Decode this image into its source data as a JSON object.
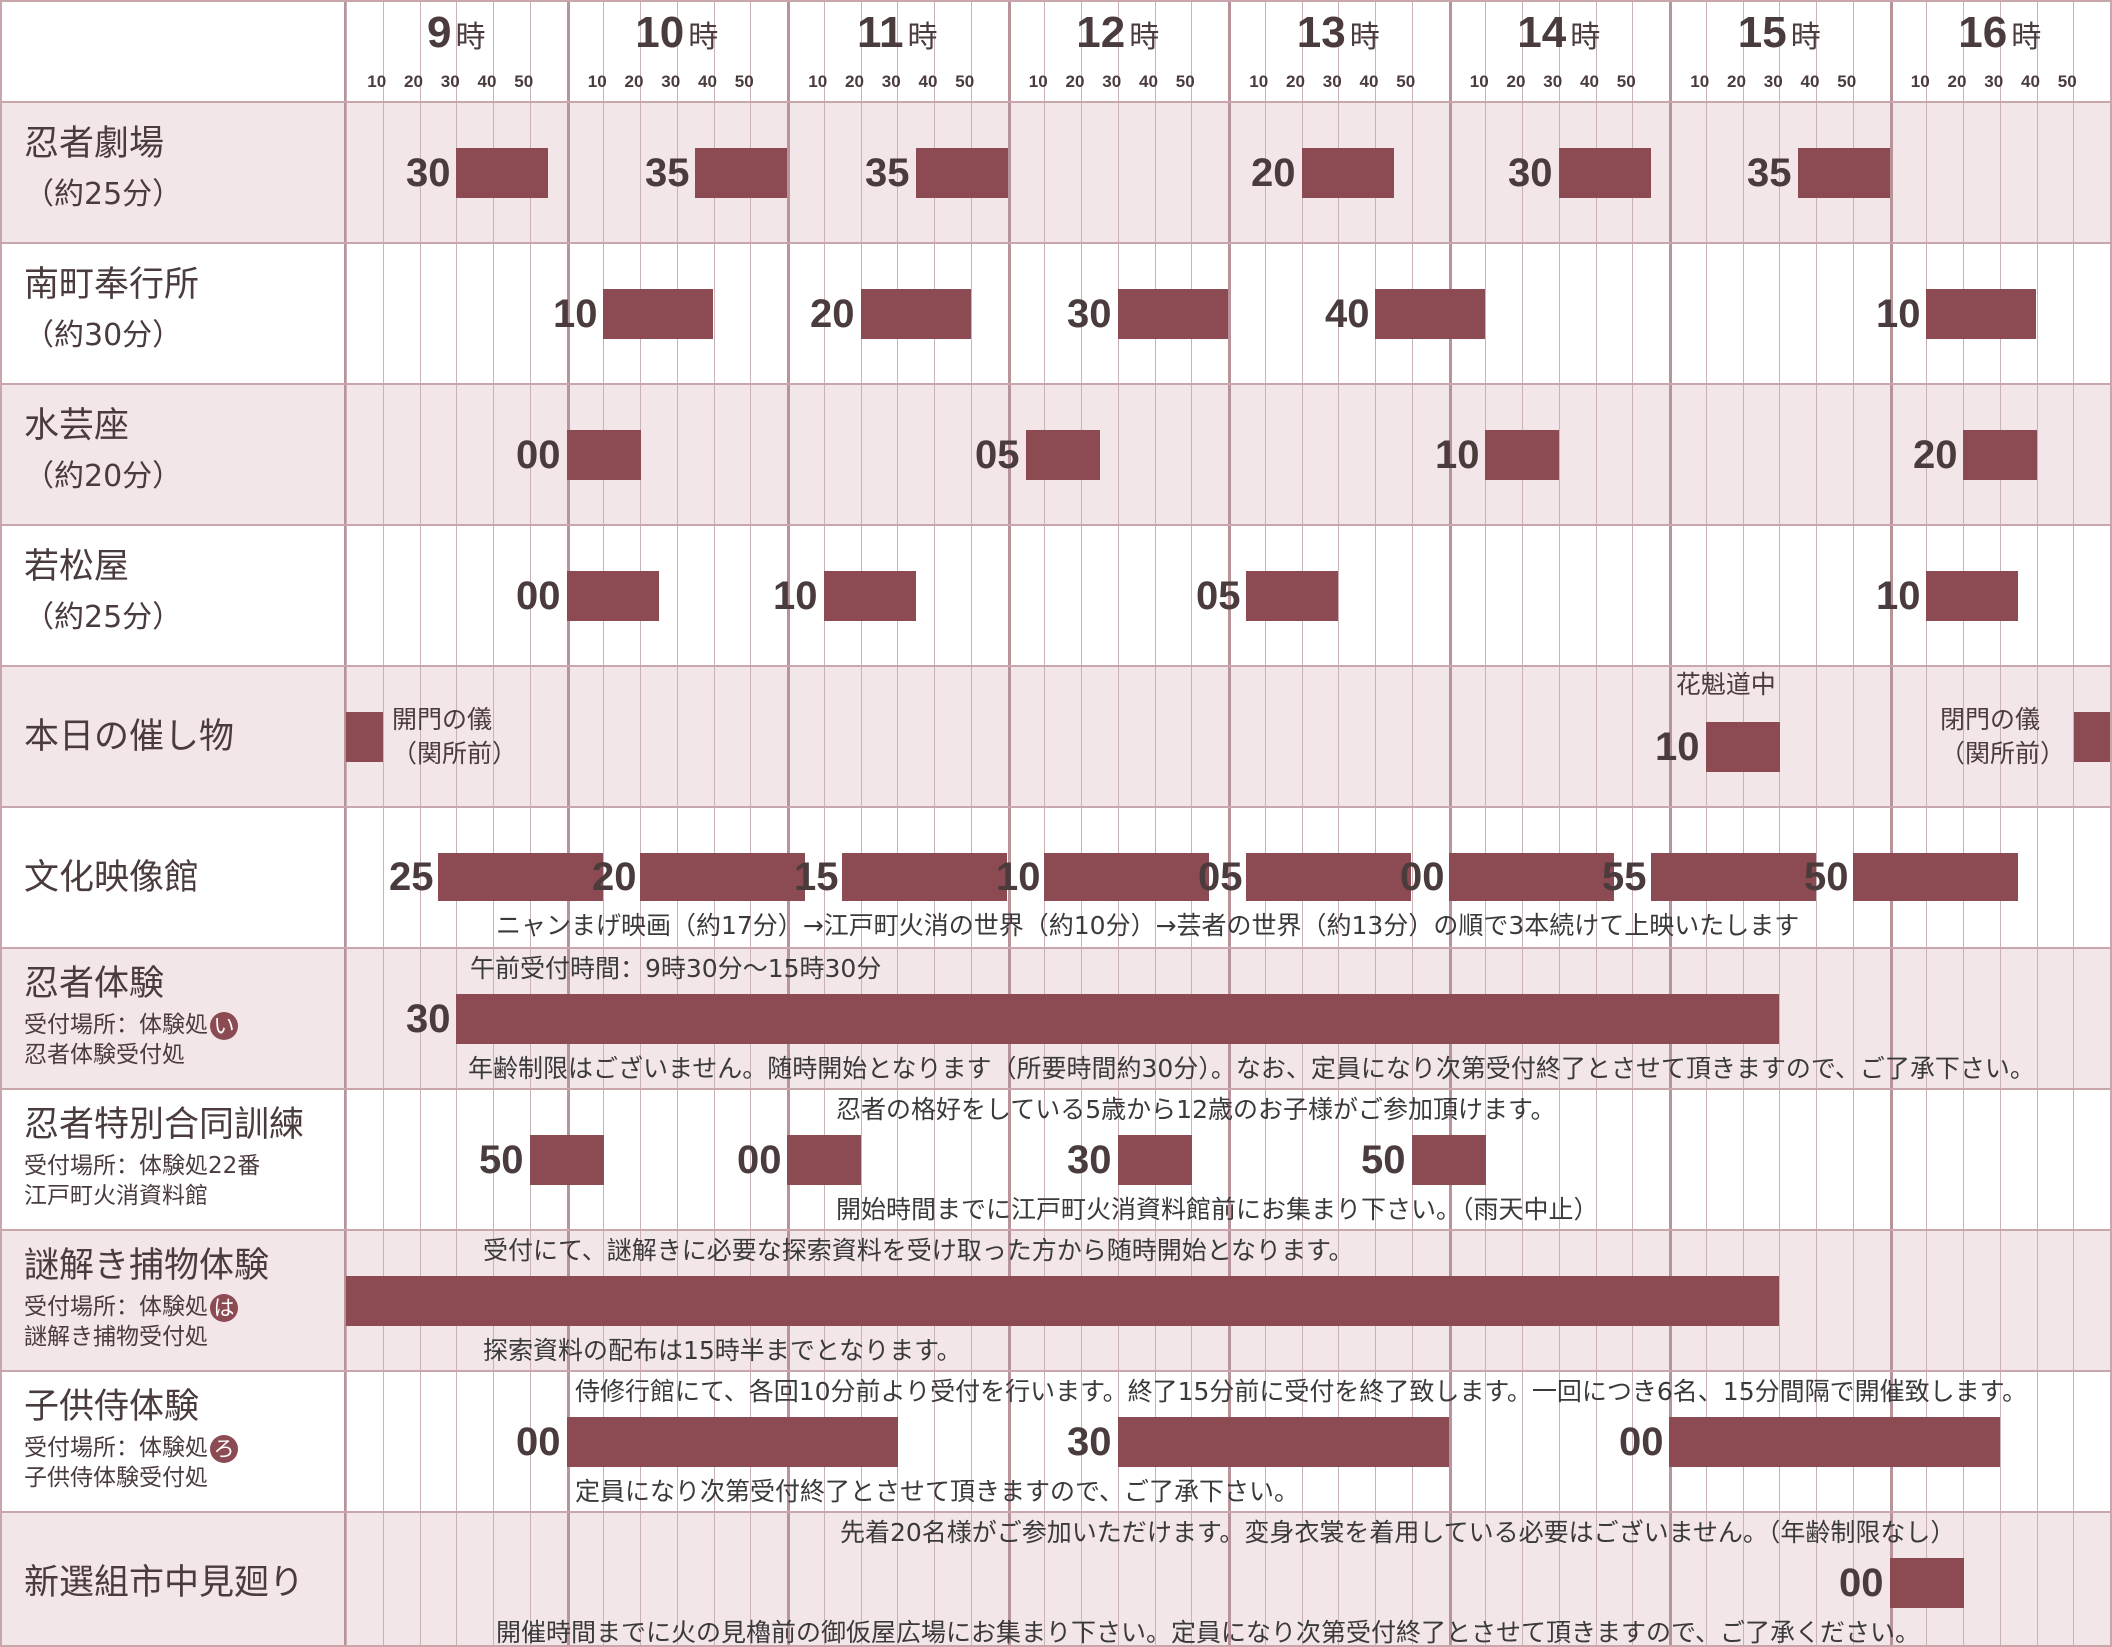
{
  "hours": [
    {
      "num": "9",
      "unit": "時"
    },
    {
      "num": "10",
      "unit": "時"
    },
    {
      "num": "11",
      "unit": "時"
    },
    {
      "num": "12",
      "unit": "時"
    },
    {
      "num": "13",
      "unit": "時"
    },
    {
      "num": "14",
      "unit": "時"
    },
    {
      "num": "15",
      "unit": "時"
    },
    {
      "num": "16",
      "unit": "時"
    }
  ],
  "minute_ticks": [
    "10",
    "20",
    "30",
    "40",
    "50"
  ],
  "colors": {
    "bar": "#8c4a52",
    "row_shade": "#f3e6e8",
    "grid": "#c9b2b6"
  },
  "rows": [
    {
      "name": "忍者劇場",
      "sub": "（約25分）",
      "shows": [
        {
          "label": "30",
          "start": "9:30",
          "end": "9:55"
        },
        {
          "label": "35",
          "start": "10:35",
          "end": "11:00"
        },
        {
          "label": "35",
          "start": "11:35",
          "end": "12:00"
        },
        {
          "label": "20",
          "start": "13:20",
          "end": "13:45"
        },
        {
          "label": "30",
          "start": "14:30",
          "end": "14:55"
        },
        {
          "label": "35",
          "start": "15:35",
          "end": "16:00"
        }
      ]
    },
    {
      "name": "南町奉行所",
      "sub": "（約30分）",
      "shows": [
        {
          "label": "10",
          "start": "10:10",
          "end": "10:40"
        },
        {
          "label": "20",
          "start": "11:20",
          "end": "11:50"
        },
        {
          "label": "30",
          "start": "12:30",
          "end": "13:00"
        },
        {
          "label": "40",
          "start": "13:40",
          "end": "14:10"
        },
        {
          "label": "10",
          "start": "16:10",
          "end": "16:40"
        }
      ]
    },
    {
      "name": "水芸座",
      "sub": "（約20分）",
      "shows": [
        {
          "label": "00",
          "start": "10:00",
          "end": "10:20"
        },
        {
          "label": "05",
          "start": "12:05",
          "end": "12:25"
        },
        {
          "label": "10",
          "start": "14:10",
          "end": "14:30"
        },
        {
          "label": "20",
          "start": "16:20",
          "end": "16:40"
        }
      ]
    },
    {
      "name": "若松屋",
      "sub": "（約25分）",
      "shows": [
        {
          "label": "00",
          "start": "10:00",
          "end": "10:25"
        },
        {
          "label": "10",
          "start": "11:10",
          "end": "11:35"
        },
        {
          "label": "05",
          "start": "13:05",
          "end": "13:30"
        },
        {
          "label": "10",
          "start": "16:10",
          "end": "16:35"
        }
      ]
    },
    {
      "name": "本日の催し物",
      "events": [
        {
          "line1": "開門の儀",
          "line2": "（関所前）"
        },
        {
          "title": "花魁道中",
          "label": "10",
          "start": "15:10",
          "end": "15:30"
        },
        {
          "line1": "閉門の儀",
          "line2": "（関所前）"
        }
      ]
    },
    {
      "name": "文化映像館",
      "shows": [
        {
          "label": "25",
          "start": "9:25",
          "end": "10:10"
        },
        {
          "label": "20",
          "start": "10:20",
          "end": "11:05"
        },
        {
          "label": "15",
          "start": "11:15",
          "end": "12:00"
        },
        {
          "label": "10",
          "start": "12:10",
          "end": "12:55"
        },
        {
          "label": "05",
          "start": "13:05",
          "end": "13:50"
        },
        {
          "label": "00",
          "start": "14:00",
          "end": "14:45"
        },
        {
          "label": "55",
          "start": "14:55",
          "end": "15:40"
        },
        {
          "label": "50",
          "start": "15:50",
          "end": "16:35"
        }
      ],
      "note": "ニャンまげ映画（約17分）→江戸町火消の世界（約10分）→芸者の世界（約13分）の順で3本続けて上映いたします"
    },
    {
      "name": "忍者体験",
      "sub1": "受付場所：体験処",
      "mark": "い",
      "sub2": "忍者体験受付処",
      "note_top": "午前受付時間：9時30分～15時30分",
      "shows": [
        {
          "label": "30",
          "start": "9:30",
          "end": "15:30"
        }
      ],
      "note": "年齢制限はございません。随時開始となります（所要時間約30分）。なお、定員になり次第受付終了とさせて頂きますので、ご了承下さい。"
    },
    {
      "name": "忍者特別合同訓練",
      "sub1": "受付場所：体験処22番",
      "sub2": "江戸町火消資料館",
      "note_top": "忍者の格好をしている5歳から12歳のお子様がご参加頂けます。",
      "shows": [
        {
          "label": "50",
          "start": "9:50",
          "end": "10:10"
        },
        {
          "label": "00",
          "start": "11:00",
          "end": "11:20"
        },
        {
          "label": "30",
          "start": "12:30",
          "end": "12:50"
        },
        {
          "label": "50",
          "start": "13:50",
          "end": "14:10"
        }
      ],
      "note": "開始時間までに江戸町火消資料館前にお集まり下さい。（雨天中止）"
    },
    {
      "name": "謎解き捕物体験",
      "sub1": "受付場所：体験処",
      "mark": "は",
      "sub2": "謎解き捕物受付処",
      "note_top": "受付にて、謎解きに必要な探索資料を受け取った方から随時開始となります。",
      "shows": [
        {
          "label": "",
          "start": "9:00",
          "end": "15:30"
        }
      ],
      "note": "探索資料の配布は15時半までとなります。"
    },
    {
      "name": "子供侍体験",
      "sub1": "受付場所：体験処",
      "mark": "ろ",
      "sub2": "子供侍体験受付処",
      "note_top": "侍修行館にて、各回10分前より受付を行います。終了15分前に受付を終了致します。一回につき6名、15分間隔で開催致します。",
      "shows": [
        {
          "label": "00",
          "start": "10:00",
          "end": "11:30"
        },
        {
          "label": "30",
          "start": "12:30",
          "end": "14:00"
        },
        {
          "label": "00",
          "start": "15:00",
          "end": "16:30"
        }
      ],
      "note": "定員になり次第受付終了とさせて頂きますので、ご了承下さい。"
    },
    {
      "name": "新選組市中見廻り",
      "note_top": "先着20名様がご参加いただけます。変身衣裳を着用している必要はございません。（年齢制限なし）",
      "shows": [
        {
          "label": "00",
          "start": "16:00",
          "end": "16:20"
        }
      ],
      "note": "開催時間までに火の見櫓前の御仮屋広場にお集まり下さい。定員になり次第受付終了とさせて頂きますので、ご了承ください。"
    }
  ]
}
